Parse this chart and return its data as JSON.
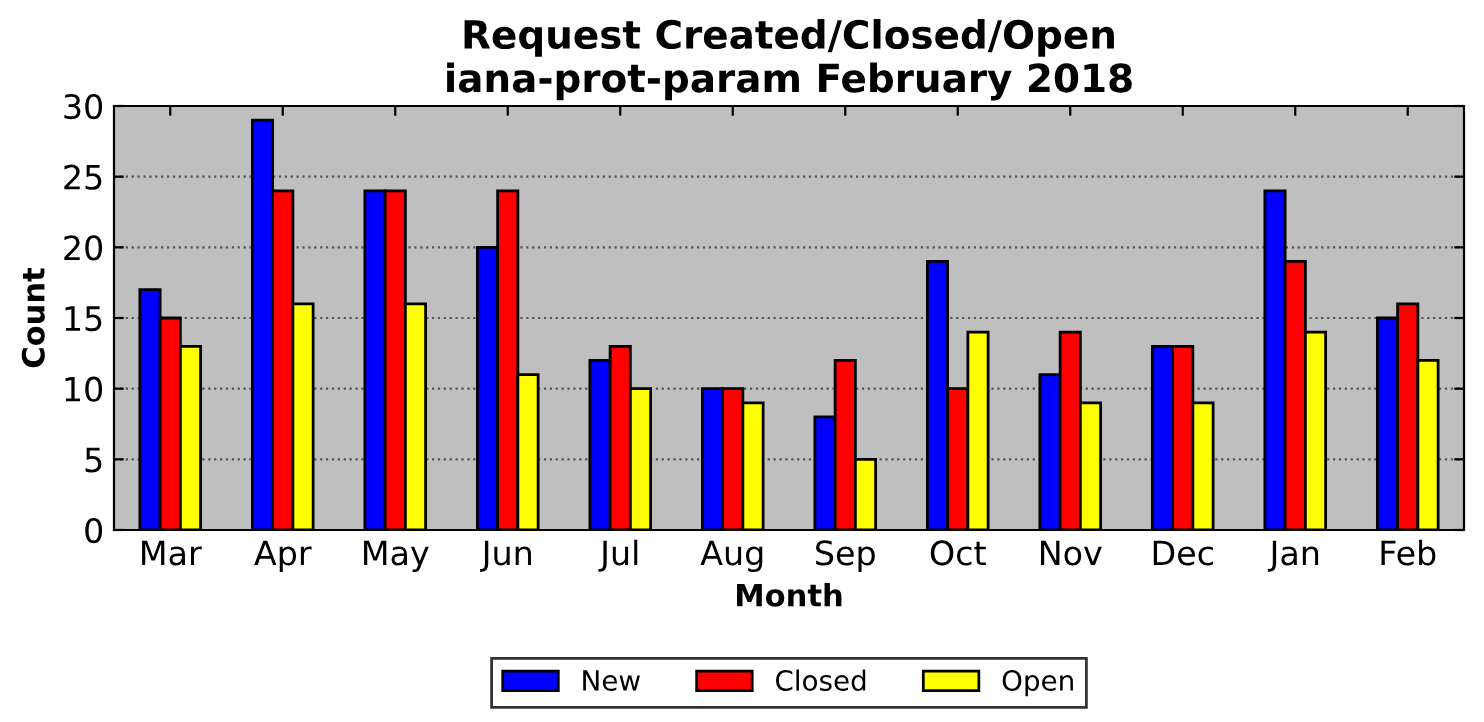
{
  "chart_data": {
    "type": "bar",
    "title": "Request Created/Closed/Open\niana-prot-param February 2018",
    "xlabel": "Month",
    "ylabel": "Count",
    "categories": [
      "Mar",
      "Apr",
      "May",
      "Jun",
      "Jul",
      "Aug",
      "Sep",
      "Oct",
      "Nov",
      "Dec",
      "Jan",
      "Feb"
    ],
    "series": [
      {
        "name": "New",
        "color": "#0000ff",
        "values": [
          17,
          29,
          24,
          20,
          12,
          10,
          8,
          19,
          11,
          13,
          24,
          15
        ]
      },
      {
        "name": "Closed",
        "color": "#ff0000",
        "values": [
          15,
          24,
          24,
          24,
          13,
          10,
          12,
          10,
          14,
          13,
          19,
          16
        ]
      },
      {
        "name": "Open",
        "color": "#ffff00",
        "values": [
          13,
          16,
          16,
          11,
          10,
          9,
          5,
          14,
          9,
          9,
          14,
          12
        ]
      }
    ],
    "ylim": [
      0,
      30
    ],
    "yticks": [
      0,
      5,
      10,
      15,
      20,
      25,
      30
    ],
    "grid": "y",
    "legend": "bottom"
  }
}
